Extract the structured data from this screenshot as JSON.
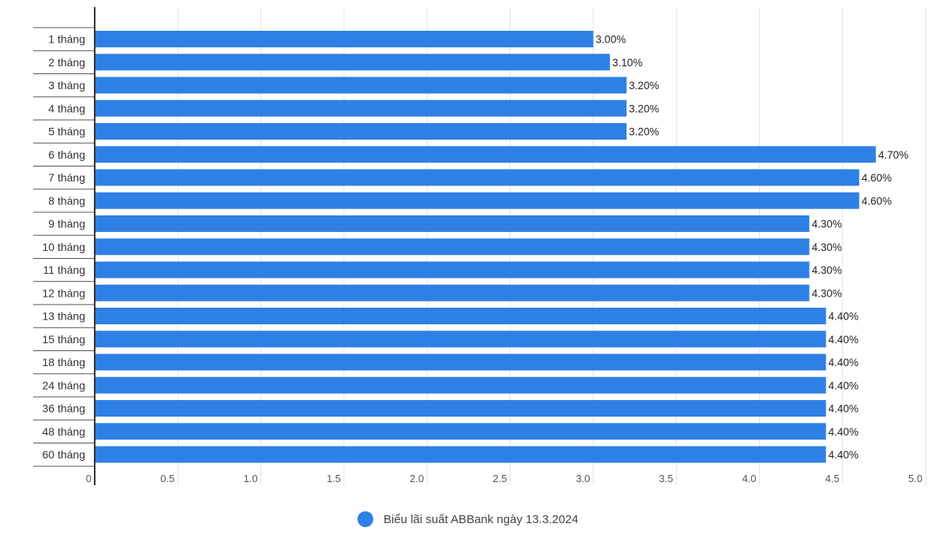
{
  "chart_data": {
    "type": "bar",
    "orientation": "horizontal",
    "categories": [
      "1 tháng",
      "2 tháng",
      "3 tháng",
      "4 tháng",
      "5 tháng",
      "6 tháng",
      "7 tháng",
      "8 tháng",
      "9 tháng",
      "10 tháng",
      "11 tháng",
      "12 tháng",
      "13 tháng",
      "15 tháng",
      "18 tháng",
      "24 tháng",
      "36 tháng",
      "48 tháng",
      "60 tháng"
    ],
    "series": [
      {
        "name": "Biểu lãi suất ABBank ngày 13.3.2024",
        "values": [
          3.0,
          3.1,
          3.2,
          3.2,
          3.2,
          4.7,
          4.6,
          4.6,
          4.3,
          4.3,
          4.3,
          4.3,
          4.4,
          4.4,
          4.4,
          4.4,
          4.4,
          4.4,
          4.4
        ],
        "labels": [
          "3.00%",
          "3.10%",
          "3.20%",
          "3.20%",
          "3.20%",
          "4.70%",
          "4.60%",
          "4.60%",
          "4.30%",
          "4.30%",
          "4.30%",
          "4.30%",
          "4.40%",
          "4.40%",
          "4.40%",
          "4.40%",
          "4.40%",
          "4.40%",
          "4.40%"
        ],
        "color": "#2f80e4"
      }
    ],
    "xlim": [
      0,
      5.0
    ],
    "xticks": [
      "0",
      "0.5",
      "1.0",
      "1.5",
      "2.0",
      "2.5",
      "3.0",
      "3.5",
      "4.0",
      "4.5",
      "5.0"
    ],
    "title": "",
    "xlabel": "",
    "ylabel": "",
    "grid": true,
    "legend_position": "bottom"
  }
}
